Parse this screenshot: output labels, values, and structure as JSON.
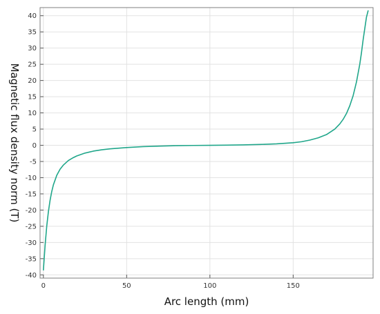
{
  "chart_data": {
    "type": "line",
    "title": "",
    "xlabel": "Arc length (mm)",
    "ylabel": "Magnetic flux density norm (T)",
    "xlim": [
      -2,
      198
    ],
    "ylim": [
      -41,
      42.5
    ],
    "x_ticks": [
      0,
      50,
      100,
      150
    ],
    "y_ticks": [
      -40,
      -35,
      -30,
      -25,
      -20,
      -15,
      -10,
      -5,
      0,
      5,
      10,
      15,
      20,
      25,
      30,
      35,
      40
    ],
    "grid": true,
    "legend": "none",
    "series": [
      {
        "color": "#1fa68a",
        "x": [
          0,
          1,
          2,
          3,
          4,
          5,
          6,
          8,
          10,
          12,
          15,
          18,
          20,
          25,
          30,
          35,
          40,
          50,
          60,
          70,
          80,
          90,
          100,
          110,
          120,
          130,
          140,
          150,
          155,
          160,
          165,
          170,
          175,
          178,
          180,
          182,
          184,
          186,
          188,
          190,
          191,
          192,
          193,
          194,
          195
        ],
        "y": [
          -38.5,
          -31,
          -25,
          -20.5,
          -17,
          -14.3,
          -12.2,
          -9.3,
          -7.4,
          -6.1,
          -4.7,
          -3.8,
          -3.3,
          -2.4,
          -1.8,
          -1.4,
          -1.1,
          -0.7,
          -0.4,
          -0.25,
          -0.12,
          -0.05,
          0,
          0.05,
          0.12,
          0.25,
          0.45,
          0.8,
          1.1,
          1.6,
          2.3,
          3.3,
          5,
          6.6,
          8,
          9.8,
          12.2,
          15.3,
          19.5,
          25,
          28.5,
          32.5,
          36,
          39.5,
          41.5
        ]
      }
    ]
  }
}
